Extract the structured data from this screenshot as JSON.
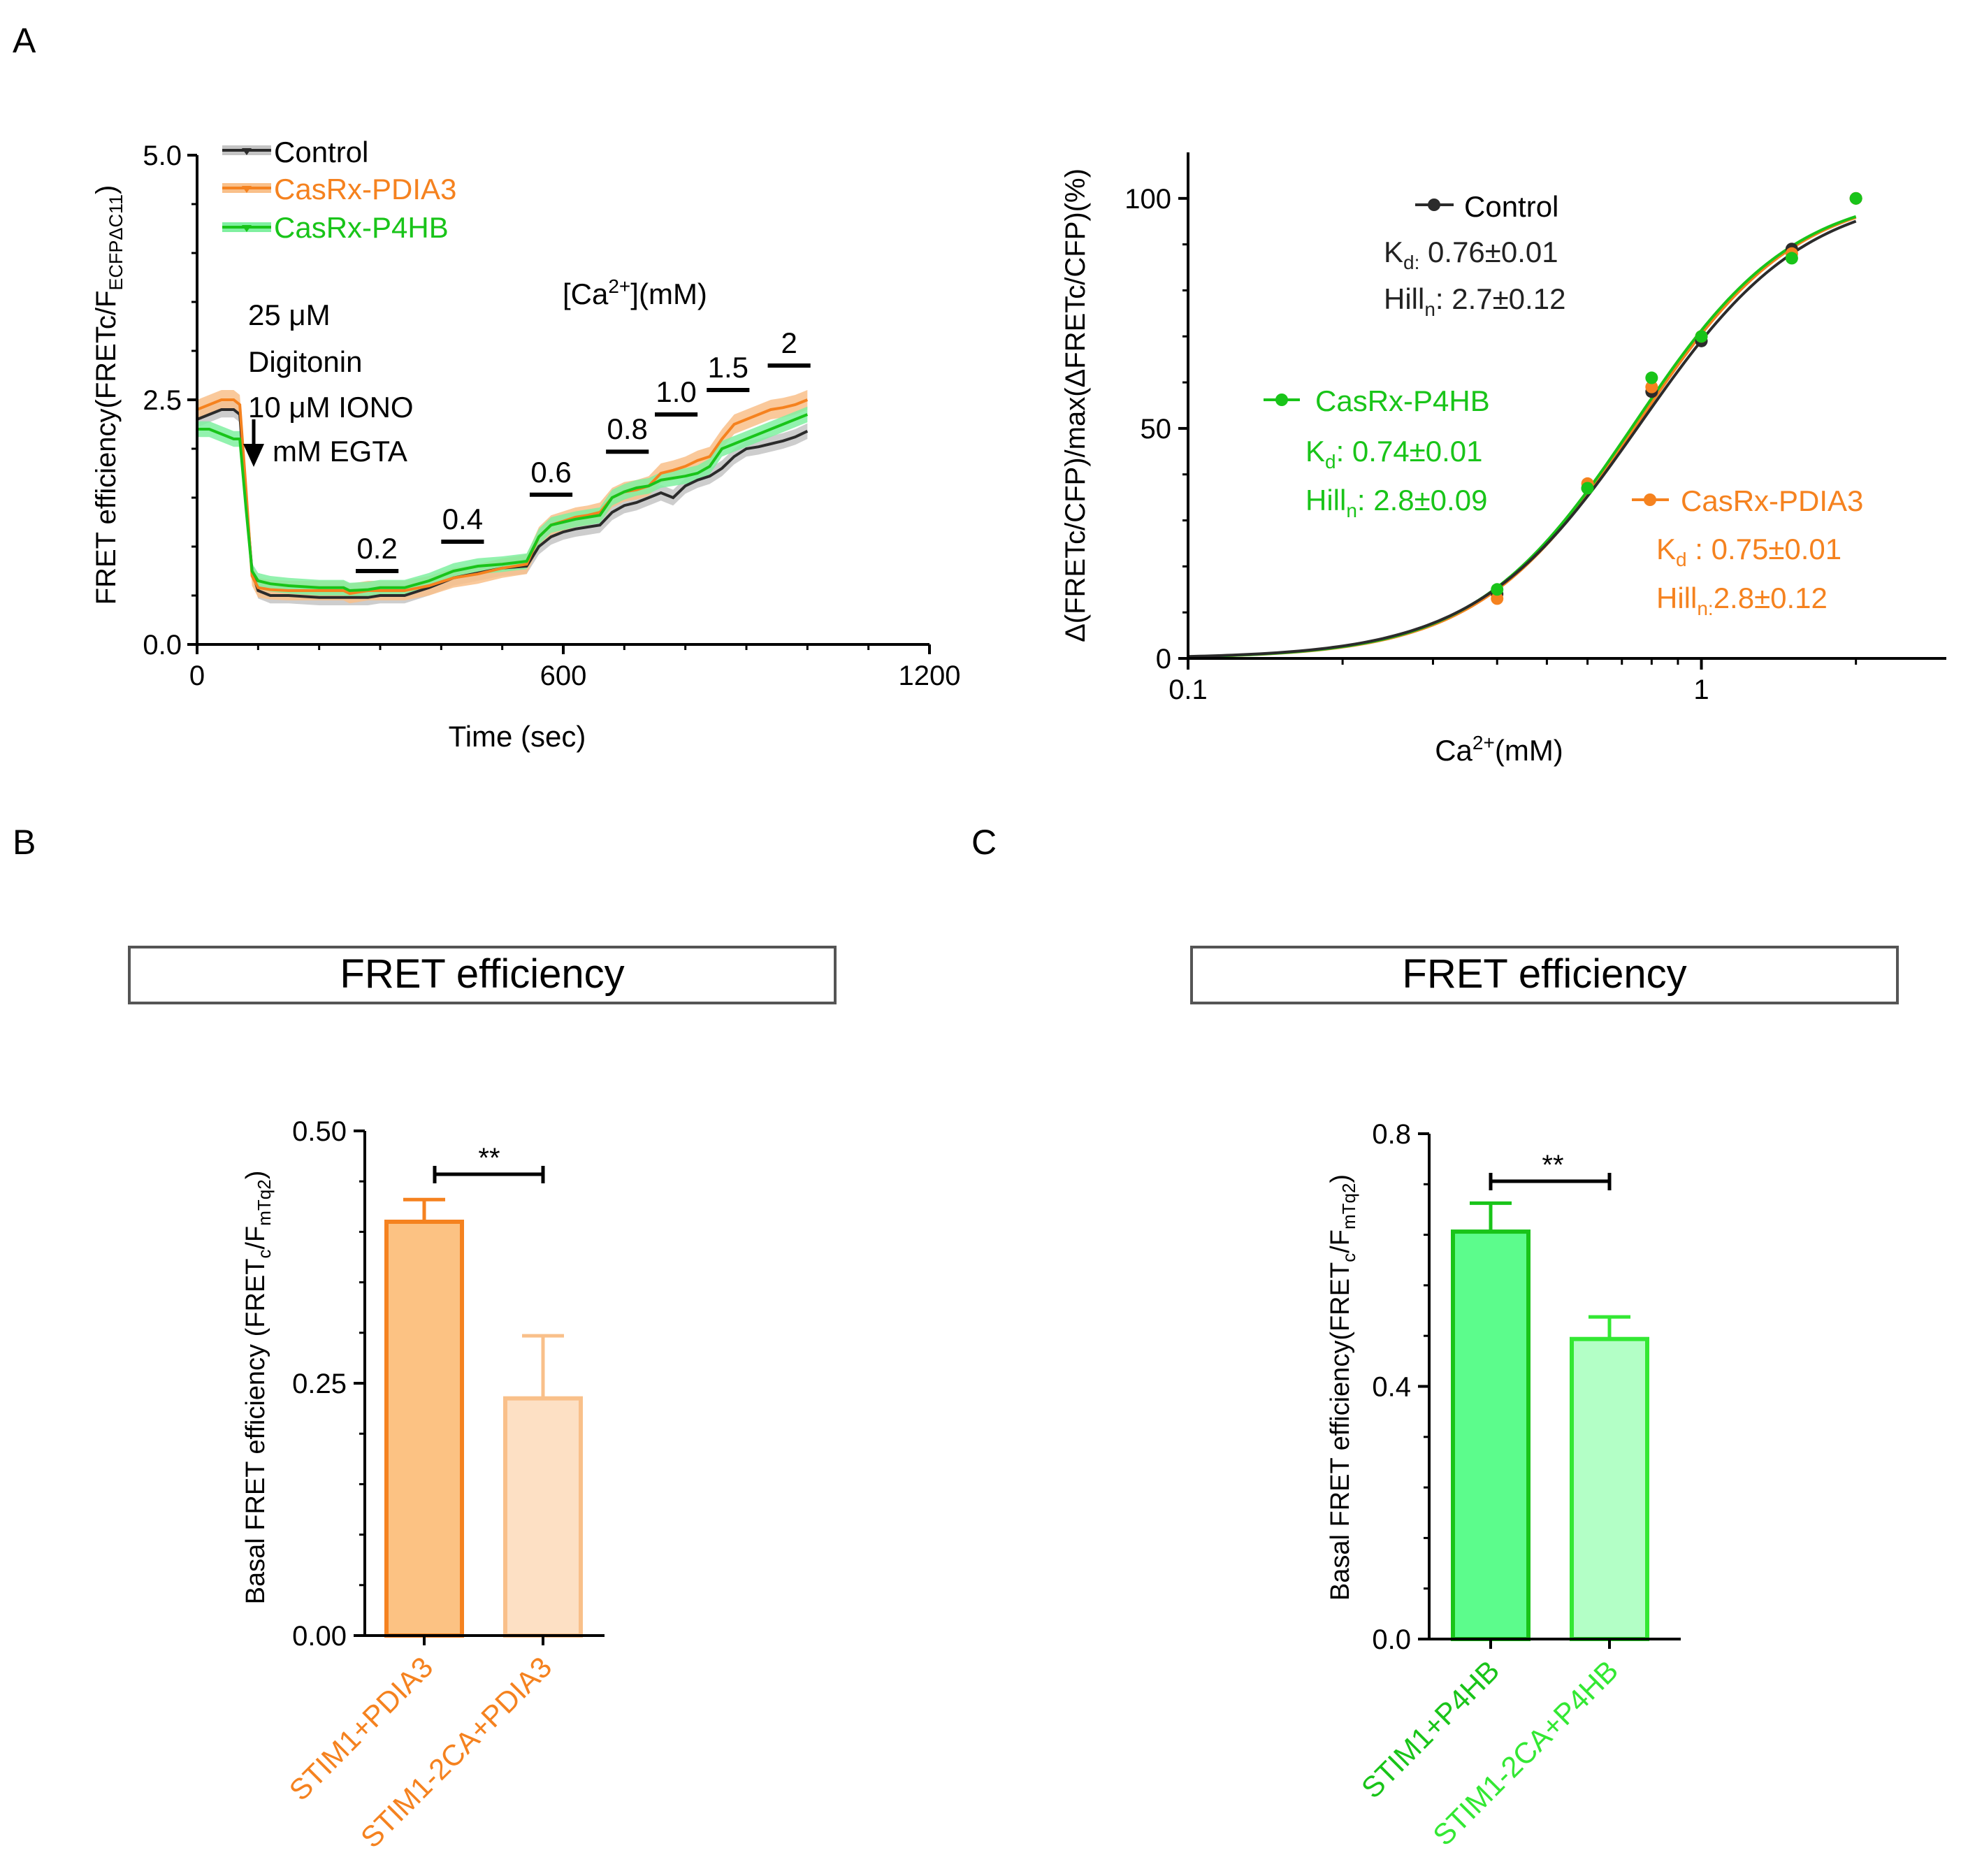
{
  "panels": {
    "a": "A",
    "b": "B",
    "c": "C"
  },
  "colors": {
    "control": "#2b2b2b",
    "control_band": "#c4c4c4",
    "pdia3": "#f5821f",
    "pdia3_band": "#f9c08a",
    "pdia3_light_fill": "#fde0c4",
    "p4hb": "#19c419",
    "p4hb_band": "#7ff0a0",
    "p4hb_fill": "#5cfc8c",
    "p4hb_light": "#33e833",
    "p4hb_light_fill": "#b3ffc6",
    "pdia3_fill": "#fcc283",
    "axis": "#000000"
  },
  "panelA_left": {
    "ylabel_main": "FRET efficiency(FRETc/F",
    "ylabel_sub": "ECFPΔC11",
    "ylabel_end": ")",
    "xlabel": "Time (sec)",
    "legend": [
      "Control",
      "CasRx-PDIA3",
      "CasRx-P4HB"
    ],
    "treatment_lines": [
      "25 μM",
      "Digitonin",
      "10 μM IONO",
      "mM EGTA"
    ],
    "ca_label_pre": "[Ca",
    "ca_label_sup": "2+",
    "ca_label_post": "](mM)"
  },
  "panelA_right": {
    "ylabel": "Δ(FRETc/CFP)/max(ΔFRETc/CFP)(%)",
    "xlabel_pre": "Ca",
    "xlabel_sup": "2+",
    "xlabel_post": "(mM)",
    "annotations": {
      "control": {
        "label": "Control",
        "kd_pre": "K",
        "kd_sub": "d:",
        "kd_val": " 0.76±0.01",
        "hill_pre": "Hill",
        "hill_sub": "n",
        "hill_val": ": 2.7±0.12"
      },
      "p4hb": {
        "label": "CasRx-P4HB",
        "kd_pre": "K",
        "kd_sub": "d",
        "kd_val": ": 0.74±0.01",
        "hill_pre": "Hill",
        "hill_sub": "n",
        "hill_val": ": 2.8±0.09"
      },
      "pdia3": {
        "label": "CasRx-PDIA3",
        "kd_pre": "K",
        "kd_sub": "d",
        "kd_val": " : 0.75±0.01",
        "hill_pre": "Hill",
        "hill_sub": "n:",
        "hill_val": "2.8±0.12"
      }
    }
  },
  "panelB": {
    "title": "FRET efficiency",
    "ylabel_pre": "Basal FRET efficiency (FRET",
    "ylabel_sub1": "c",
    "ylabel_mid": "/F",
    "ylabel_sub2": "mTq2",
    "ylabel_end": ")",
    "significance": "**"
  },
  "panelC": {
    "title": "FRET efficiency",
    "ylabel_pre": "Basal FRET efficiency(FRET",
    "ylabel_sub1": "c",
    "ylabel_mid": "/F",
    "ylabel_sub2": "mTq2",
    "ylabel_end": ")",
    "significance": "**"
  },
  "chart_data": [
    {
      "id": "A-left",
      "type": "line",
      "xlabel": "Time (sec)",
      "ylabel": "FRET efficiency(FRETc/FECFPΔC11)",
      "xlim": [
        0,
        1200
      ],
      "ylim": [
        0,
        5
      ],
      "xticks": [
        0,
        600,
        1200
      ],
      "xtick_labels": [
        "0",
        "600",
        "1200"
      ],
      "yticks": [
        0,
        2.5,
        5
      ],
      "ytick_labels": [
        "0.0",
        "2.5",
        "5.0"
      ],
      "series": [
        {
          "name": "Control",
          "sem": 0.08,
          "x": [
            0,
            20,
            40,
            60,
            70,
            80,
            90,
            100,
            120,
            150,
            200,
            240,
            250,
            280,
            300,
            340,
            380,
            420,
            460,
            500,
            540,
            560,
            580,
            600,
            620,
            640,
            660,
            680,
            700,
            720,
            740,
            760,
            780,
            800,
            820,
            840,
            860,
            880,
            900,
            920,
            940,
            960,
            980,
            1000
          ],
          "y": [
            2.3,
            2.35,
            2.4,
            2.4,
            2.35,
            1.5,
            0.75,
            0.55,
            0.5,
            0.5,
            0.48,
            0.48,
            0.48,
            0.48,
            0.5,
            0.5,
            0.58,
            0.68,
            0.73,
            0.78,
            0.8,
            1.0,
            1.1,
            1.15,
            1.18,
            1.2,
            1.22,
            1.35,
            1.42,
            1.45,
            1.5,
            1.55,
            1.5,
            1.62,
            1.68,
            1.72,
            1.8,
            1.92,
            2.0,
            2.02,
            2.05,
            2.08,
            2.12,
            2.18
          ]
        },
        {
          "name": "CasRx-PDIA3",
          "sem": 0.1,
          "x": [
            0,
            20,
            40,
            60,
            70,
            80,
            90,
            100,
            120,
            150,
            200,
            240,
            250,
            280,
            300,
            340,
            380,
            420,
            460,
            500,
            540,
            560,
            580,
            600,
            620,
            640,
            660,
            680,
            700,
            720,
            740,
            760,
            780,
            800,
            820,
            840,
            860,
            880,
            900,
            920,
            940,
            960,
            980,
            1000
          ],
          "y": [
            2.4,
            2.45,
            2.5,
            2.5,
            2.45,
            1.6,
            0.7,
            0.58,
            0.56,
            0.55,
            0.55,
            0.55,
            0.52,
            0.55,
            0.55,
            0.55,
            0.6,
            0.68,
            0.72,
            0.78,
            0.82,
            1.1,
            1.22,
            1.26,
            1.3,
            1.32,
            1.35,
            1.5,
            1.56,
            1.58,
            1.62,
            1.75,
            1.78,
            1.82,
            1.88,
            1.92,
            2.1,
            2.25,
            2.3,
            2.35,
            2.4,
            2.42,
            2.45,
            2.5
          ]
        },
        {
          "name": "CasRx-P4HB",
          "sem": 0.08,
          "x": [
            0,
            20,
            40,
            60,
            70,
            80,
            90,
            100,
            120,
            150,
            200,
            240,
            250,
            280,
            300,
            340,
            380,
            420,
            460,
            500,
            540,
            560,
            580,
            600,
            620,
            640,
            660,
            680,
            700,
            720,
            740,
            760,
            780,
            800,
            820,
            840,
            860,
            880,
            900,
            920,
            940,
            960,
            980,
            1000
          ],
          "y": [
            2.2,
            2.2,
            2.15,
            2.1,
            2.1,
            1.4,
            0.75,
            0.65,
            0.62,
            0.6,
            0.58,
            0.58,
            0.55,
            0.56,
            0.58,
            0.58,
            0.65,
            0.75,
            0.8,
            0.82,
            0.85,
            1.1,
            1.22,
            1.25,
            1.28,
            1.3,
            1.32,
            1.5,
            1.56,
            1.6,
            1.62,
            1.68,
            1.7,
            1.72,
            1.75,
            1.82,
            2.0,
            2.05,
            2.1,
            2.15,
            2.2,
            2.25,
            2.3,
            2.35
          ]
        }
      ],
      "calcium_steps": [
        {
          "label": "0.2",
          "x_start": 260,
          "x_end": 330,
          "y": 0.75
        },
        {
          "label": "0.4",
          "x_start": 400,
          "x_end": 470,
          "y": 1.05
        },
        {
          "label": "0.6",
          "x_start": 545,
          "x_end": 615,
          "y": 1.53
        },
        {
          "label": "0.8",
          "x_start": 670,
          "x_end": 740,
          "y": 1.97
        },
        {
          "label": "1.0",
          "x_start": 750,
          "x_end": 820,
          "y": 2.35
        },
        {
          "label": "1.5",
          "x_start": 835,
          "x_end": 905,
          "y": 2.6
        },
        {
          "label": "2",
          "x_start": 935,
          "x_end": 1005,
          "y": 2.85
        }
      ],
      "arrow_x": 90
    },
    {
      "id": "A-right",
      "type": "scatter",
      "xscale": "log",
      "xlim": [
        0.1,
        3
      ],
      "ylim": [
        0,
        110
      ],
      "xticks": [
        0.1,
        1
      ],
      "xtick_labels": [
        "0.1",
        "1"
      ],
      "yticks": [
        0,
        50,
        100
      ],
      "ytick_labels": [
        "0",
        "50",
        "100"
      ],
      "ca_x": [
        0.4,
        0.6,
        0.8,
        1.0,
        1.5,
        2.0
      ],
      "series": [
        {
          "name": "Control",
          "kd": 0.76,
          "hill": 2.7,
          "y": [
            14,
            37,
            58,
            69,
            89,
            100
          ]
        },
        {
          "name": "CasRx-PDIA3",
          "kd": 0.75,
          "hill": 2.8,
          "y": [
            13,
            38,
            59,
            70,
            88,
            100
          ]
        },
        {
          "name": "CasRx-P4HB",
          "kd": 0.74,
          "hill": 2.8,
          "y": [
            15,
            37,
            61,
            70,
            87,
            100
          ]
        }
      ]
    },
    {
      "id": "B",
      "type": "bar",
      "categories": [
        "STIM1+PDIA3",
        "STIM1-2CA+PDIA3"
      ],
      "values": [
        0.41,
        0.235
      ],
      "errors": [
        0.022,
        0.062
      ],
      "ylim": [
        0,
        0.5
      ],
      "yticks": [
        0,
        0.25,
        0.5
      ],
      "ytick_labels": [
        "0.00",
        "0.25",
        "0.50"
      ]
    },
    {
      "id": "C",
      "type": "bar",
      "categories": [
        "STIM1+P4HB",
        "STIM1-2CA+P4HB"
      ],
      "values": [
        0.645,
        0.475
      ],
      "errors": [
        0.045,
        0.035
      ],
      "ylim": [
        0,
        0.8
      ],
      "yticks": [
        0,
        0.4,
        0.8
      ],
      "ytick_labels": [
        "0.0",
        "0.4",
        "0.8"
      ]
    }
  ]
}
